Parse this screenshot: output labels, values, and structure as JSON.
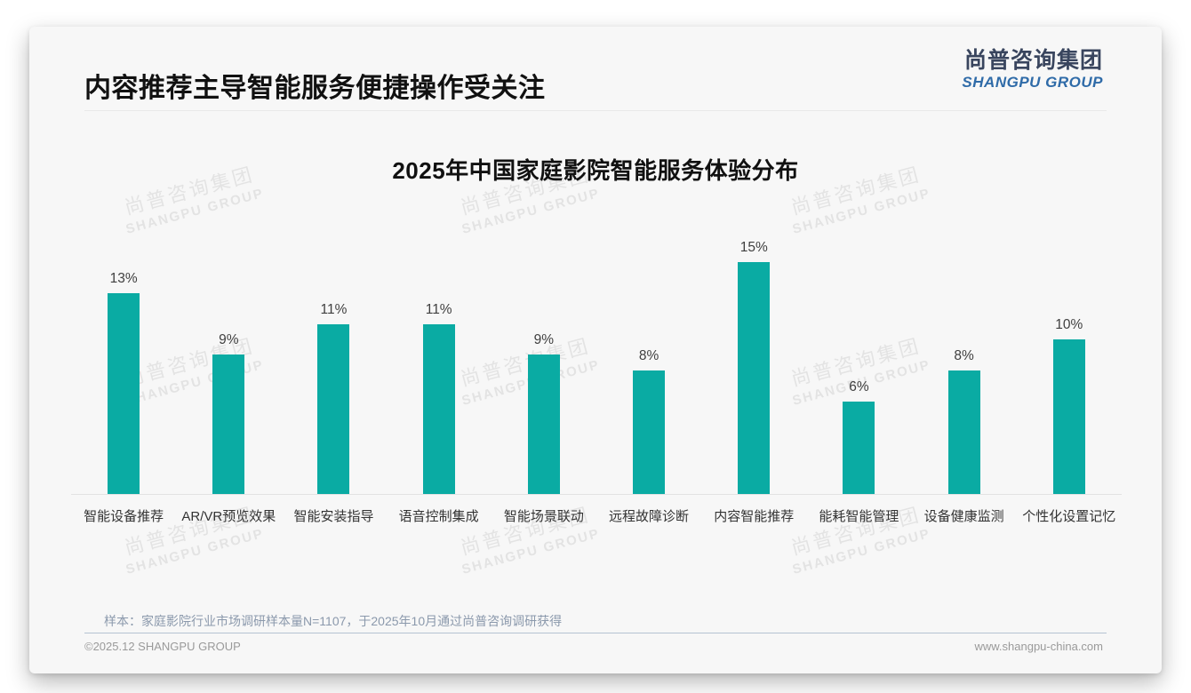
{
  "page": {
    "title": "内容推荐主导智能服务便捷操作受关注",
    "logo": {
      "cn": "尚普咨询集团",
      "en": "SHANGPU GROUP"
    },
    "watermark": {
      "cn": "尚普咨询集团",
      "en": "SHANGPU GROUP"
    },
    "footnote": "样本：家庭影院行业市场调研样本量N=1107，于2025年10月通过尚普咨询调研获得",
    "footer": {
      "left": "©2025.12 SHANGPU GROUP",
      "right": "www.shangpu-china.com"
    }
  },
  "chart_data": {
    "type": "bar",
    "title": "2025年中国家庭影院智能服务体验分布",
    "categories": [
      "智能设备推荐",
      "AR/VR预览效果",
      "智能安装指导",
      "语音控制集成",
      "智能场景联动",
      "远程故障诊断",
      "内容智能推荐",
      "能耗智能管理",
      "设备健康监测",
      "个性化设置记忆"
    ],
    "values": [
      13,
      9,
      11,
      11,
      9,
      8,
      15,
      6,
      8,
      10
    ],
    "data_labels": [
      "13%",
      "9%",
      "11%",
      "11%",
      "9%",
      "8%",
      "15%",
      "6%",
      "8%",
      "10%"
    ],
    "unit": "%",
    "xlabel": "",
    "ylabel": "",
    "ylim": [
      0,
      15
    ],
    "bar_color": "#0aaba3",
    "grid": false,
    "legend_position": "none"
  }
}
